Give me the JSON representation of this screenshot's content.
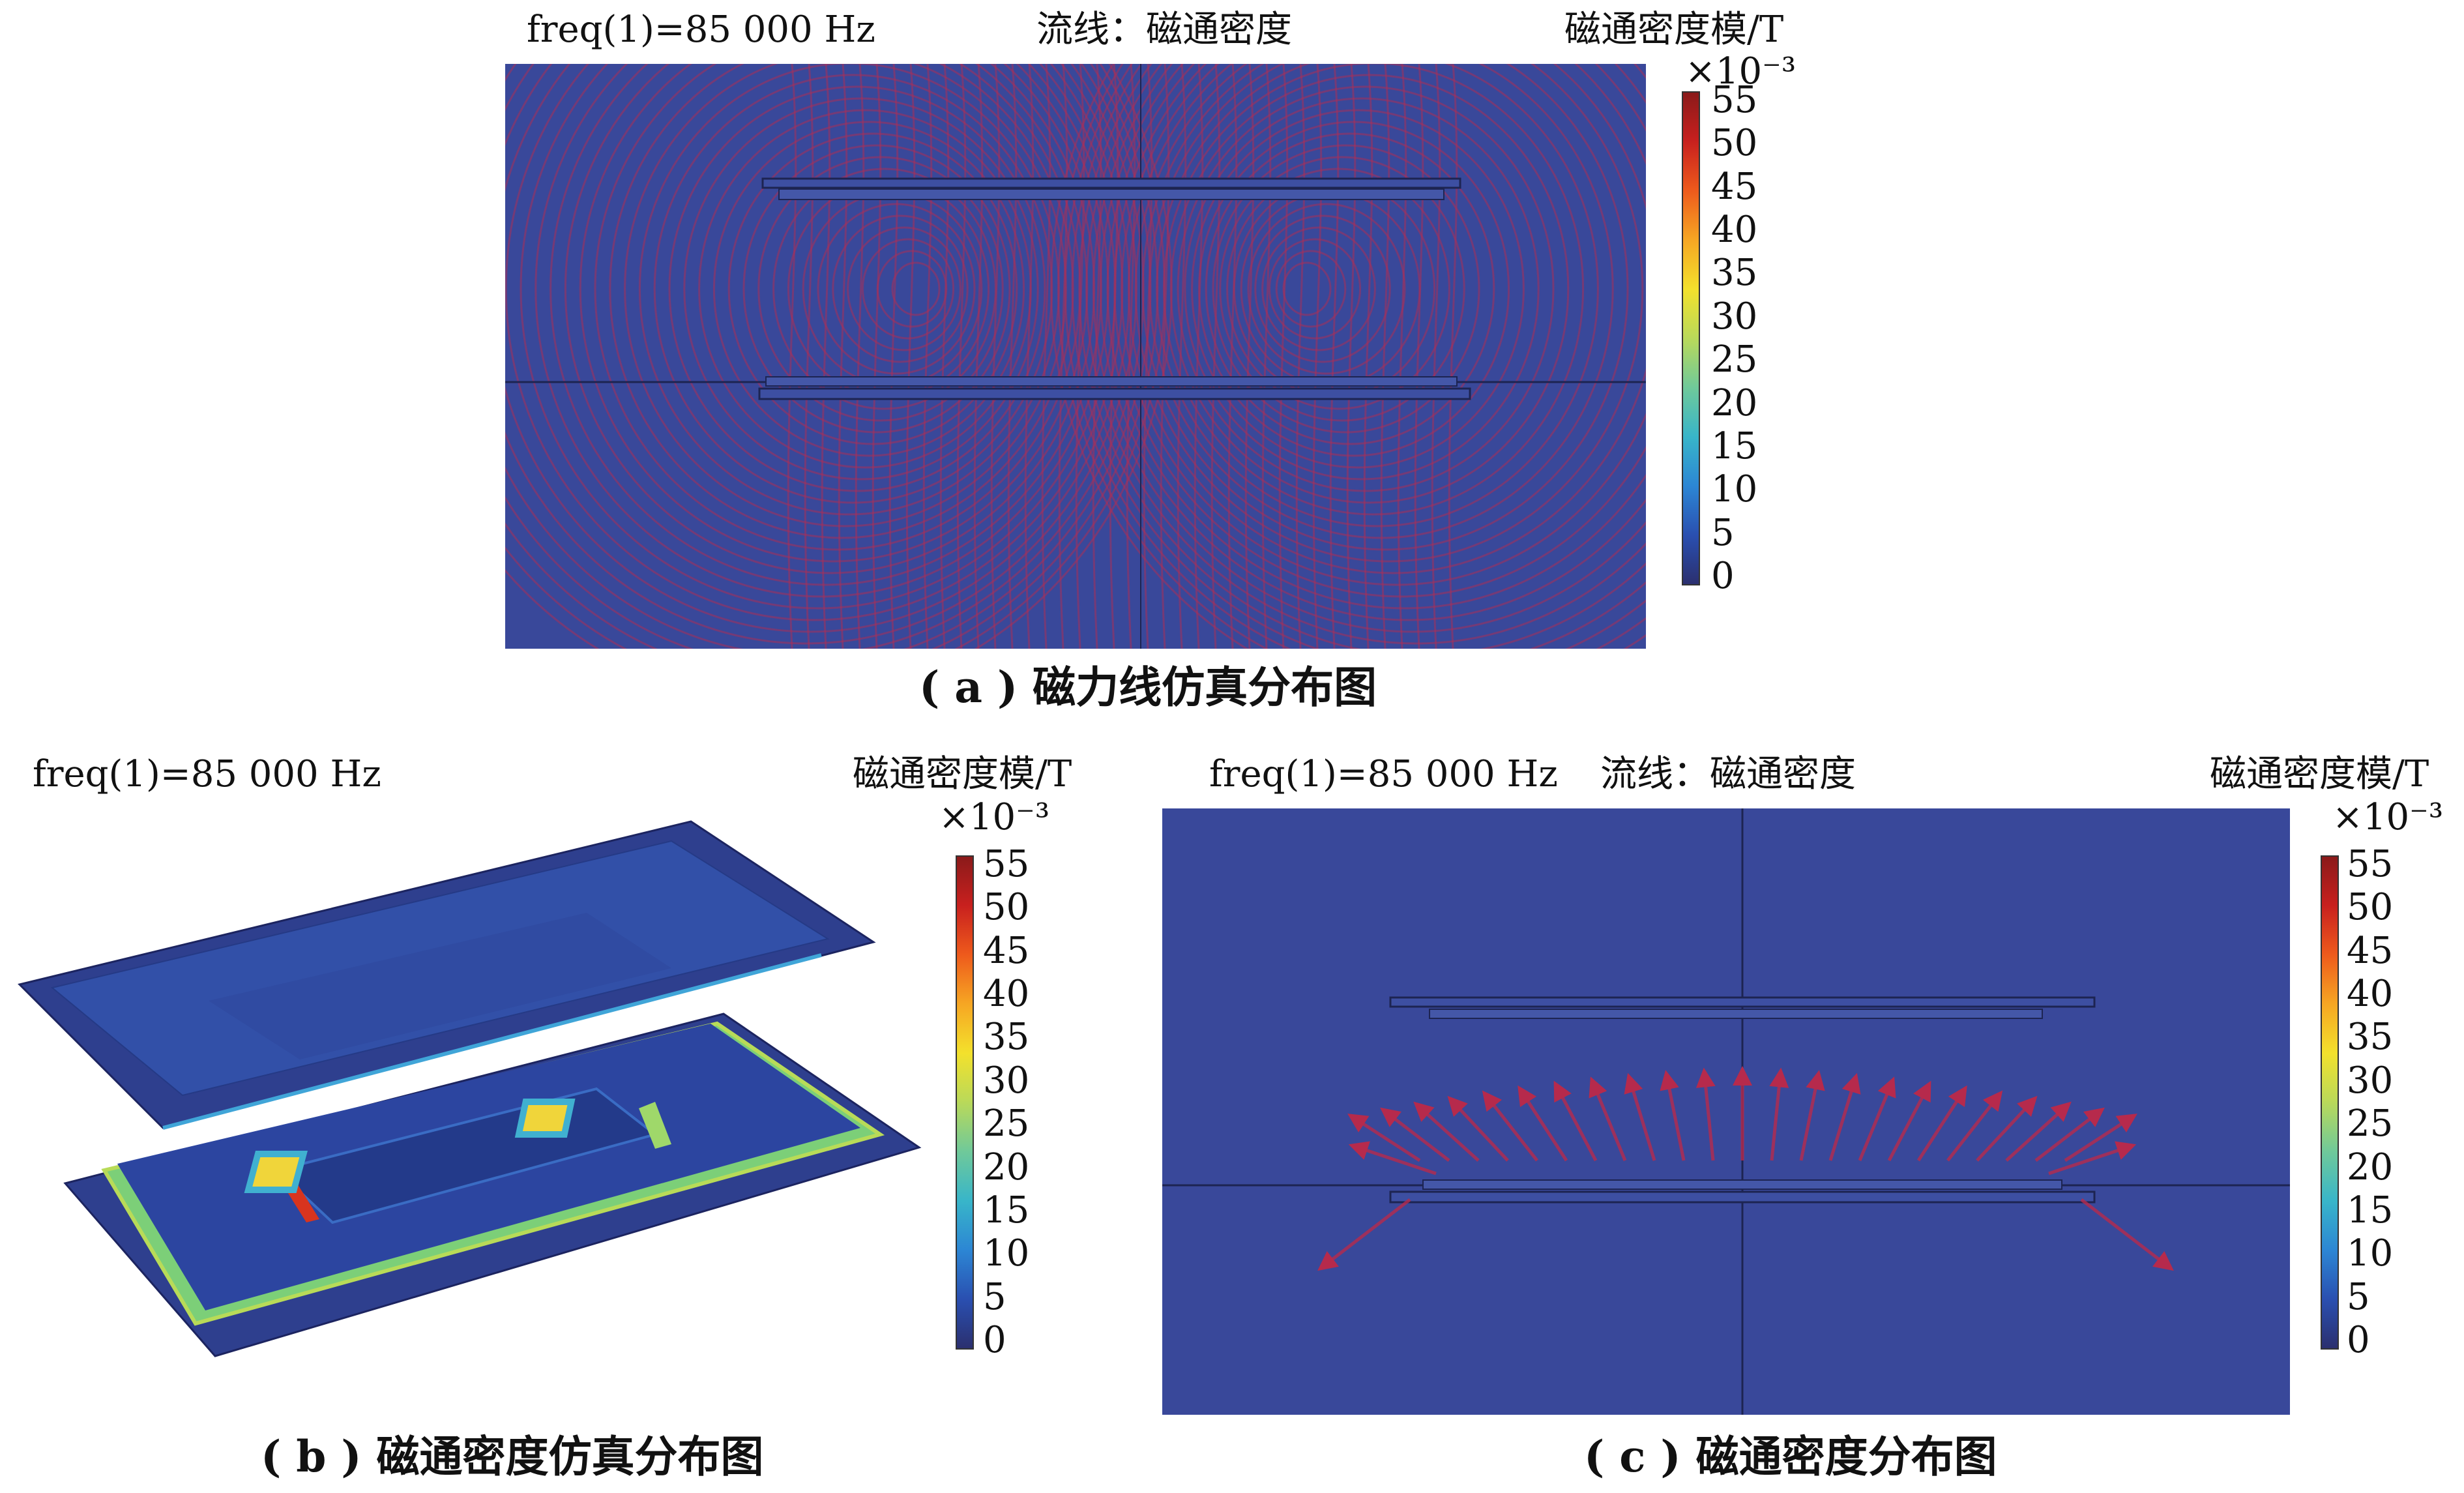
{
  "panel_a": {
    "freq": "freq(1)=85 000 Hz",
    "plot_title": "流线：磁通密度",
    "colorbar_label": "磁通密度模/T",
    "colorbar_scale": "×10⁻³",
    "caption": "( a ) 磁力线仿真分布图"
  },
  "panel_b": {
    "freq": "freq(1)=85 000 Hz",
    "colorbar_label": "磁通密度模/T",
    "colorbar_scale": "×10⁻³",
    "caption": "( b ) 磁通密度仿真分布图"
  },
  "panel_c": {
    "freq": "freq(1)=85 000 Hz",
    "plot_title": "流线：磁通密度",
    "colorbar_label": "磁通密度模/T",
    "colorbar_scale": "×10⁻³",
    "caption": "( c ) 磁通密度分布图"
  },
  "colorbar": {
    "ticks": [
      "55",
      "50",
      "45",
      "40",
      "35",
      "30",
      "25",
      "20",
      "15",
      "10",
      "5",
      "0"
    ],
    "min": 0,
    "max": 55,
    "colormap": [
      "#2b2f6e",
      "#2a4fb0",
      "#2c86d4",
      "#38b5c9",
      "#6fc99a",
      "#b9d95a",
      "#f3e12c",
      "#f6a623",
      "#ee5a1c",
      "#c8201e",
      "#8a1a1a"
    ]
  },
  "colors": {
    "field_background": "#39489a",
    "streamline": "#a8305a",
    "arrow": "#b62a4c"
  }
}
